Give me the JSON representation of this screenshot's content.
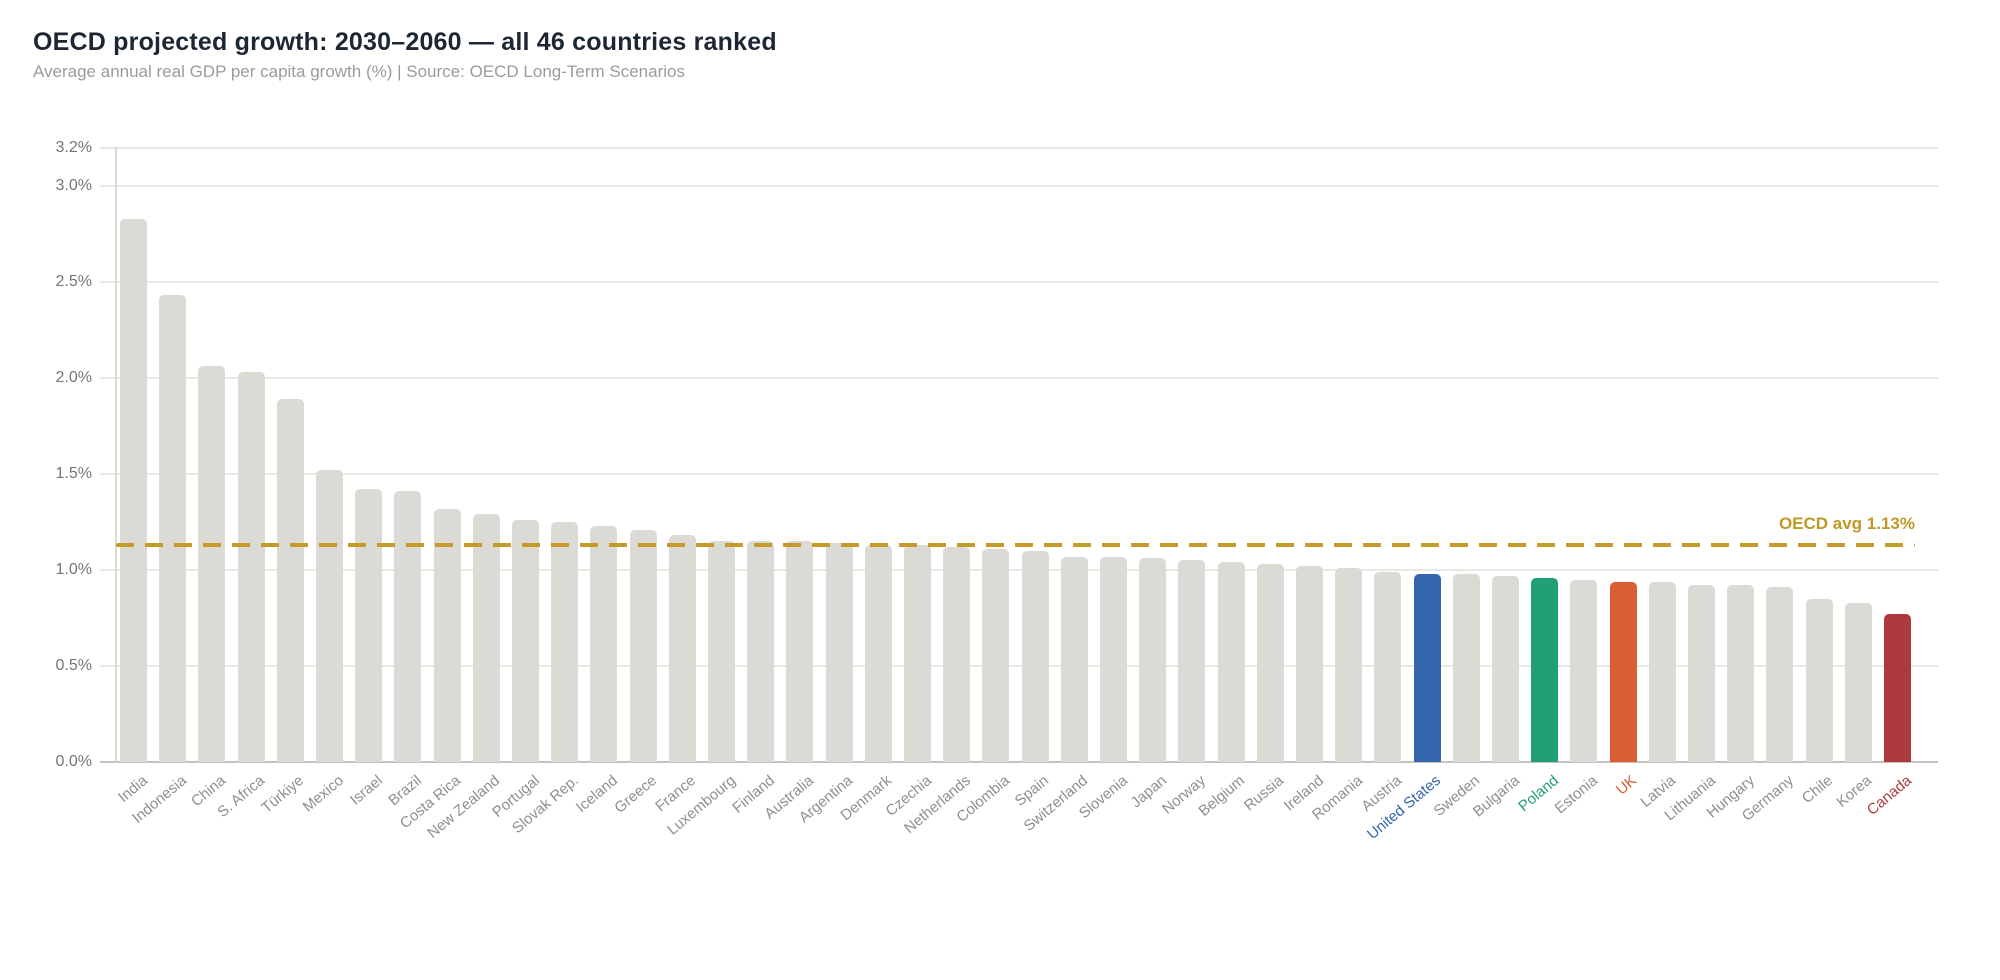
{
  "header": {
    "title": "OECD projected growth: 2030–2060 — all 46 countries ranked",
    "subtitle": "Average annual real GDP per capita growth (%) | Source: OECD Long-Term Scenarios"
  },
  "chart_data": {
    "type": "bar",
    "title": "OECD projected growth: 2030–2060 — all 46 countries ranked",
    "subtitle": "Average annual real GDP per capita growth (%) | Source: OECD Long-Term Scenarios",
    "xlabel": "",
    "ylabel": "Average annual real GDP per capita growth (%)",
    "ylim": [
      0,
      3.2
    ],
    "grid": true,
    "legend_position": "none",
    "y_ticks": [
      "3.2%",
      "3.0%",
      "2.5%",
      "2.0%",
      "1.5%",
      "1.0%",
      "0.5%",
      "0.0%"
    ],
    "y_tick_values": [
      3.2,
      3.0,
      2.5,
      2.0,
      1.5,
      1.0,
      0.5,
      0.0
    ],
    "categories": [
      "India",
      "Indonesia",
      "China",
      "S. Africa",
      "Türkiye",
      "Mexico",
      "Israel",
      "Brazil",
      "Costa Rica",
      "New Zealand",
      "Portugal",
      "Slovak Rep.",
      "Iceland",
      "Greece",
      "France",
      "Luxembourg",
      "Finland",
      "Australia",
      "Argentina",
      "Denmark",
      "Czechia",
      "Netherlands",
      "Colombia",
      "Spain",
      "Switzerland",
      "Slovenia",
      "Japan",
      "Norway",
      "Belgium",
      "Russia",
      "Ireland",
      "Romania",
      "Austria",
      "United States",
      "Sweden",
      "Bulgaria",
      "Poland",
      "Estonia",
      "UK",
      "Latvia",
      "Lithuania",
      "Hungary",
      "Germany",
      "Chile",
      "Korea",
      "Canada"
    ],
    "values": [
      2.83,
      2.43,
      2.06,
      2.03,
      1.89,
      1.52,
      1.42,
      1.41,
      1.32,
      1.29,
      1.26,
      1.25,
      1.23,
      1.21,
      1.18,
      1.15,
      1.15,
      1.15,
      1.14,
      1.13,
      1.13,
      1.12,
      1.11,
      1.1,
      1.07,
      1.07,
      1.06,
      1.05,
      1.04,
      1.03,
      1.02,
      1.01,
      0.99,
      0.98,
      0.98,
      0.97,
      0.96,
      0.95,
      0.94,
      0.94,
      0.92,
      0.92,
      0.91,
      0.85,
      0.83,
      0.77
    ],
    "default_bar_color": "#dcdad5",
    "highlights": {
      "United States": "#3465ad",
      "Poland": "#21a077",
      "UK": "#d95f33",
      "Canada": "#ad3a3c"
    },
    "reference_line": {
      "value": 1.13,
      "label": "OECD avg 1.13%",
      "style": "dashed",
      "color": "#c49b28"
    },
    "colors": {
      "background": "#ffffff",
      "gridline": "#eae8e2",
      "axis_line": "#c6c4bf",
      "title_text": "#1d2633",
      "subtitle_text": "#9b9b9b",
      "tick_text": "#757575",
      "xlabel_text": "#8f8f8f"
    }
  }
}
